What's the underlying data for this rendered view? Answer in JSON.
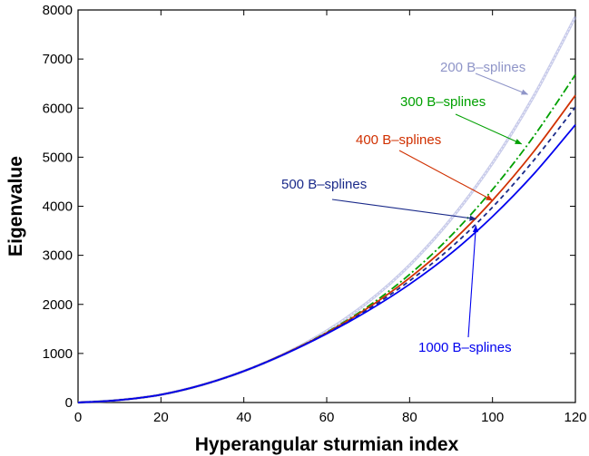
{
  "chart_data": {
    "type": "line",
    "title": "",
    "xlabel": "Hyperangular sturmian index",
    "ylabel": "Eigenvalue",
    "xlim": [
      0,
      120
    ],
    "ylim": [
      0,
      8000
    ],
    "xticks": [
      0,
      20,
      40,
      60,
      80,
      100,
      120
    ],
    "yticks": [
      0,
      1000,
      2000,
      3000,
      4000,
      5000,
      6000,
      7000,
      8000
    ],
    "grid": false,
    "legend": "none (curves labelled by arrowed annotations)",
    "x": [
      0,
      10,
      20,
      30,
      40,
      50,
      60,
      70,
      80,
      90,
      100,
      110,
      120
    ],
    "series": [
      {
        "name": "200 B–splines",
        "color": "#9aa0d8",
        "line_style": "solid-double",
        "values": [
          0,
          50,
          160,
          360,
          640,
          1000,
          1460,
          2050,
          2800,
          3740,
          4880,
          6250,
          7860
        ]
      },
      {
        "name": "300 B–splines",
        "color": "#00a000",
        "line_style": "dash-dot",
        "values": [
          0,
          50,
          160,
          360,
          640,
          1000,
          1430,
          1960,
          2610,
          3400,
          4340,
          5430,
          6680
        ]
      },
      {
        "name": "400 B–splines",
        "color": "#d03000",
        "line_style": "solid",
        "values": [
          0,
          50,
          160,
          360,
          640,
          1000,
          1420,
          1930,
          2540,
          3260,
          4120,
          5120,
          6260
        ]
      },
      {
        "name": "500 B–splines",
        "color": "#1a2a8a",
        "line_style": "dashed",
        "values": [
          0,
          50,
          160,
          360,
          640,
          995,
          1410,
          1900,
          2480,
          3160,
          3980,
          4940,
          6020
        ]
      },
      {
        "name": "1000 B–splines",
        "color": "#0000ee",
        "line_style": "solid",
        "values": [
          0,
          50,
          160,
          360,
          640,
          990,
          1400,
          1870,
          2410,
          3040,
          3790,
          4660,
          5660
        ]
      }
    ],
    "annotations": [
      {
        "text": "200 B–splines",
        "color": "#8f95c8",
        "target": [
          108.5,
          6280
        ]
      },
      {
        "text": "300 B–splines",
        "color": "#00a000",
        "target": [
          107,
          5270
        ]
      },
      {
        "text": "400 B–splines",
        "color": "#d03000",
        "target": [
          100,
          4120
        ]
      },
      {
        "text": "500 B–splines",
        "color": "#1a2a8a",
        "target": [
          96,
          3740
        ]
      },
      {
        "text": "1000 B–splines",
        "color": "#0000ee",
        "target": [
          96,
          3600
        ]
      }
    ]
  }
}
